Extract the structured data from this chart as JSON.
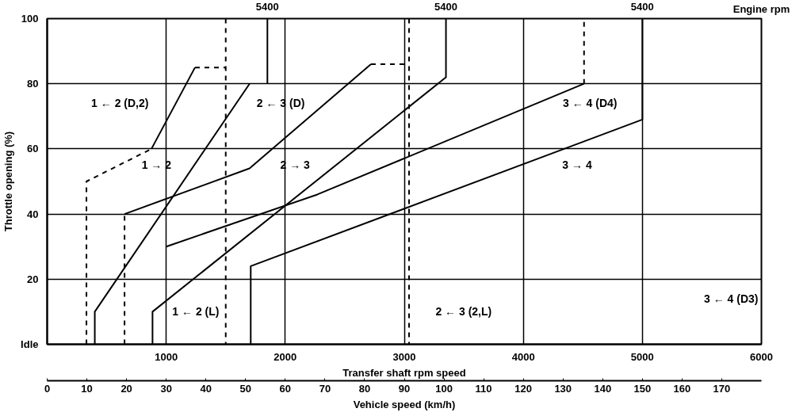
{
  "chart_data": {
    "type": "line",
    "xlabel": "Transfer shaft rpm speed",
    "ylabel": "Throttle opening (%)",
    "x2label": "Vehicle speed (km/h)",
    "xlim": [
      0,
      6000
    ],
    "xticks": [
      1000,
      2000,
      3000,
      4000,
      5000,
      6000
    ],
    "ylim": [
      0,
      100
    ],
    "yticks": [
      {
        "value": 0,
        "label": "Idle"
      },
      20,
      40,
      60,
      80,
      100
    ],
    "x2lim": [
      0,
      180
    ],
    "x2ticks": [
      0,
      10,
      20,
      30,
      40,
      50,
      60,
      70,
      80,
      90,
      100,
      110,
      120,
      130,
      140,
      150,
      160,
      170
    ],
    "grid": true,
    "series": [
      {
        "color": "#000000",
        "line_style": "dashed",
        "x": [
          330,
          330,
          876
        ],
        "values": [
          0,
          50,
          60
        ]
      },
      {
        "color": "#000000",
        "line_style": "solid",
        "x": [
          876,
          1242
        ],
        "values": [
          60,
          85
        ]
      },
      {
        "color": "#000000",
        "line_style": "dashed",
        "x": [
          1242,
          1500
        ],
        "values": [
          85,
          85
        ]
      },
      {
        "color": "#000000",
        "line_style": "dashed",
        "x": [
          1500,
          1500
        ],
        "values": [
          100,
          0
        ]
      },
      {
        "color": "#000000",
        "line_style": "solid",
        "x": [
          400,
          400,
          1700
        ],
        "values": [
          0,
          10,
          80
        ]
      },
      {
        "color": "#000000",
        "line_style": "dashed",
        "x": [
          650,
          650
        ],
        "values": [
          0,
          40
        ]
      },
      {
        "color": "#000000",
        "line_style": "solid",
        "x": [
          650,
          1700,
          2720
        ],
        "values": [
          40,
          54,
          86
        ]
      },
      {
        "color": "#000000",
        "line_style": "dashed",
        "x": [
          2720,
          3040
        ],
        "values": [
          86,
          86
        ]
      },
      {
        "color": "#000000",
        "line_style": "dashed",
        "x": [
          3040,
          3040
        ],
        "values": [
          100,
          0
        ]
      },
      {
        "color": "#000000",
        "line_style": "solid",
        "x": [
          1000,
          2270,
          4510
        ],
        "values": [
          30,
          46,
          80
        ]
      },
      {
        "color": "#000000",
        "line_style": "dashed",
        "x": [
          4510,
          4510
        ],
        "values": [
          80,
          100
        ]
      },
      {
        "color": "#000000",
        "line_style": "solid",
        "x": [
          885,
          885,
          3350,
          3350
        ],
        "values": [
          0,
          10,
          82,
          100
        ]
      },
      {
        "color": "#000000",
        "line_style": "solid",
        "x": [
          1710,
          1710,
          5000,
          5000
        ],
        "values": [
          0,
          24,
          69,
          100
        ]
      },
      {
        "color": "#000000",
        "line_style": "solid",
        "x": [
          1850,
          1850
        ],
        "values": [
          80,
          100
        ]
      }
    ],
    "annotations": [
      {
        "text": "5400",
        "x": 1850,
        "y": 100
      },
      {
        "text": "5400",
        "x": 3350,
        "y": 100
      },
      {
        "text": "5400",
        "x": 5000,
        "y": 100
      },
      "Engine rpm",
      "1 ← 2 (D,2)",
      "1 → 2",
      "2 ← 3 (D)",
      "2 → 3",
      "3 ← 4 (D4)",
      "3 → 4",
      "1 ← 2 (L)",
      "2 ← 3 (2,L)",
      "3 ← 4 (D3)"
    ]
  }
}
